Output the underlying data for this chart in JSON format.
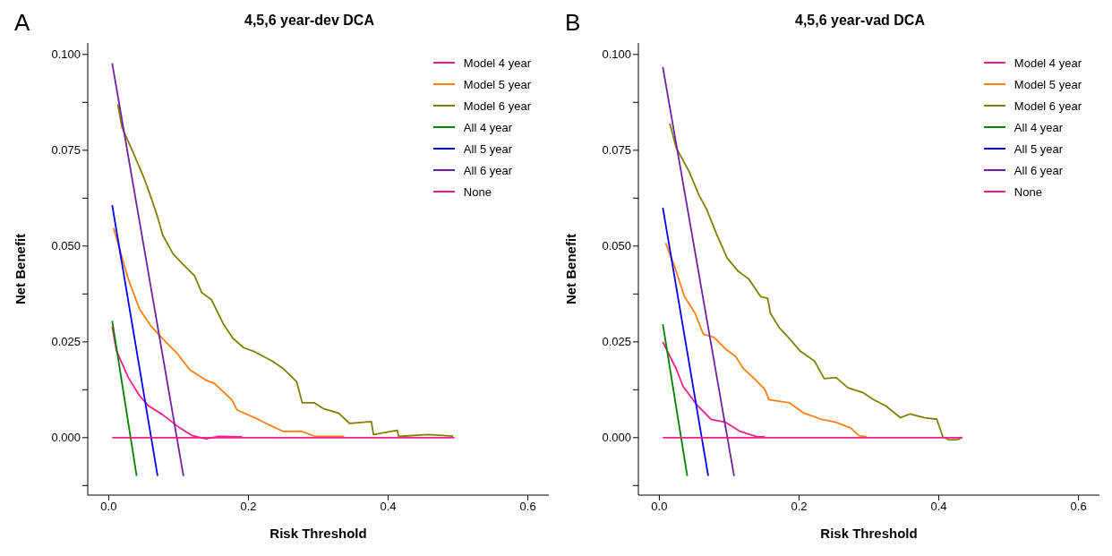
{
  "chart_data": [
    {
      "type": "line",
      "title": "4,5,6 year-dev DCA",
      "xlabel": "Risk Threshold",
      "ylabel": "Net Benefit",
      "annotations": [
        "A"
      ],
      "legend": "top right",
      "xlim": [
        -0.03,
        0.63
      ],
      "ylim": [
        -0.015,
        0.103
      ],
      "xticks": [
        {
          "value": 0,
          "label": "0.0"
        },
        0.2,
        0.4,
        0.6
      ],
      "yticks": [
        {
          "value": -0.0125,
          "label": null
        },
        {
          "value": 0,
          "label": "0.000"
        },
        {
          "value": 0.0125,
          "label": null
        },
        {
          "value": 0.025,
          "label": "0.025"
        },
        {
          "value": 0.0375,
          "label": null
        },
        {
          "value": 0.05,
          "label": "0.050"
        },
        {
          "value": 0.0625,
          "label": null
        },
        {
          "value": 0.075,
          "label": "0.075"
        },
        {
          "value": 0.0875,
          "label": null
        },
        {
          "value": 0.1,
          "label": "0.100"
        }
      ],
      "series": [
        {
          "name": "Model 4 year",
          "color": "#ff1a8c",
          "x": [
            0.005,
            0.011,
            0.028,
            0.044,
            0.057,
            0.077,
            0.102,
            0.12,
            0.139,
            0.156,
            0.191
          ],
          "values": [
            0.029,
            0.0227,
            0.0157,
            0.011,
            0.0083,
            0.006,
            0.0025,
            0.0005,
            -0.0003,
            0.0003,
            0.0002
          ]
        },
        {
          "name": "Model 5 year",
          "color": "#ff7f0e",
          "x": [
            0.007,
            0.028,
            0.044,
            0.061,
            0.081,
            0.098,
            0.116,
            0.139,
            0.151,
            0.176,
            0.184,
            0.209,
            0.23,
            0.25,
            0.275,
            0.296,
            0.337
          ],
          "values": [
            0.0547,
            0.0414,
            0.0336,
            0.029,
            0.0251,
            0.022,
            0.0177,
            0.015,
            0.0142,
            0.0099,
            0.0072,
            0.0052,
            0.0033,
            0.0016,
            0.0017,
            0.0003,
            0.0003
          ]
        },
        {
          "name": "Model 6 year",
          "color": "#808000",
          "x": [
            0.013,
            0.019,
            0.036,
            0.05,
            0.061,
            0.071,
            0.077,
            0.092,
            0.106,
            0.123,
            0.133,
            0.147,
            0.164,
            0.178,
            0.193,
            0.209,
            0.234,
            0.25,
            0.269,
            0.277,
            0.294,
            0.308,
            0.329,
            0.345,
            0.376,
            0.379,
            0.413,
            0.415,
            0.457,
            0.493
          ],
          "values": [
            0.087,
            0.081,
            0.074,
            0.068,
            0.0625,
            0.057,
            0.053,
            0.048,
            0.0453,
            0.0422,
            0.0379,
            0.036,
            0.0297,
            0.0259,
            0.0235,
            0.0224,
            0.02,
            0.018,
            0.0146,
            0.0091,
            0.0091,
            0.0075,
            0.0064,
            0.0037,
            0.0042,
            0.0008,
            0.0019,
            0.0003,
            0.0008,
            0.0004
          ]
        },
        {
          "name": "All 4 year",
          "color": "#008000",
          "x": [
            0.005,
            0.04
          ],
          "values": [
            0.0305,
            -0.01
          ]
        },
        {
          "name": "All 5 year",
          "color": "#0000ff",
          "x": [
            0.005,
            0.07
          ],
          "values": [
            0.0607,
            -0.01
          ]
        },
        {
          "name": "All 6 year",
          "color": "#7020a0",
          "x": [
            0.005,
            0.107
          ],
          "values": [
            0.0977,
            -0.01
          ]
        },
        {
          "name": "None",
          "color": "#ff1a8c",
          "x": [
            0.005,
            0.495
          ],
          "values": [
            0,
            0
          ]
        }
      ]
    },
    {
      "type": "line",
      "title": "4,5,6 year-vad DCA",
      "xlabel": "Risk Threshold",
      "ylabel": "Net Benefit",
      "annotations": [
        "B"
      ],
      "legend": "top right",
      "xlim": [
        -0.03,
        0.63
      ],
      "ylim": [
        -0.015,
        0.103
      ],
      "xticks": [
        {
          "value": 0,
          "label": "0.0"
        },
        0.2,
        0.4,
        0.6
      ],
      "yticks": [
        {
          "value": -0.0125,
          "label": null
        },
        {
          "value": 0,
          "label": "0.000"
        },
        {
          "value": 0.0125,
          "label": null
        },
        {
          "value": 0.025,
          "label": "0.025"
        },
        {
          "value": 0.0375,
          "label": null
        },
        {
          "value": 0.05,
          "label": "0.050"
        },
        {
          "value": 0.0625,
          "label": null
        },
        {
          "value": 0.075,
          "label": "0.075"
        },
        {
          "value": 0.0875,
          "label": null
        },
        {
          "value": 0.1,
          "label": "0.100"
        }
      ],
      "series": [
        {
          "name": "Model 4 year",
          "color": "#ff1a8c",
          "x": [
            0.005,
            0.024,
            0.034,
            0.053,
            0.074,
            0.095,
            0.115,
            0.128,
            0.14,
            0.151
          ],
          "values": [
            0.025,
            0.018,
            0.0134,
            0.0087,
            0.0048,
            0.004,
            0.0017,
            0.0009,
            0.0002,
            0.0002
          ]
        },
        {
          "name": "Model 5 year",
          "color": "#ff7f0e",
          "x": [
            0.009,
            0.022,
            0.036,
            0.051,
            0.063,
            0.078,
            0.095,
            0.109,
            0.12,
            0.136,
            0.151,
            0.157,
            0.186,
            0.207,
            0.232,
            0.253,
            0.274,
            0.286,
            0.297
          ],
          "values": [
            0.0508,
            0.0446,
            0.0368,
            0.0325,
            0.027,
            0.0262,
            0.0231,
            0.0212,
            0.0181,
            0.0154,
            0.0126,
            0.0099,
            0.0091,
            0.0064,
            0.0048,
            0.004,
            0.0025,
            0.0005,
            0.0002
          ]
        },
        {
          "name": "Model 6 year",
          "color": "#808000",
          "x": [
            0.015,
            0.024,
            0.0425,
            0.057,
            0.0675,
            0.082,
            0.097,
            0.113,
            0.128,
            0.145,
            0.155,
            0.159,
            0.172,
            0.186,
            0.201,
            0.222,
            0.236,
            0.253,
            0.27,
            0.291,
            0.307,
            0.324,
            0.345,
            0.359,
            0.38,
            0.397,
            0.406,
            0.415,
            0.428,
            0.433
          ],
          "values": [
            0.082,
            0.0757,
            0.0695,
            0.0632,
            0.0597,
            0.0531,
            0.0469,
            0.0434,
            0.0414,
            0.0368,
            0.0364,
            0.0325,
            0.0286,
            0.0259,
            0.0227,
            0.02,
            0.0154,
            0.0157,
            0.013,
            0.0118,
            0.0099,
            0.0083,
            0.0052,
            0.0062,
            0.0052,
            0.0048,
            0.0002,
            -0.0006,
            -0.0005,
            0.0002
          ]
        },
        {
          "name": "All 4 year",
          "color": "#008000",
          "x": [
            0.005,
            0.04
          ],
          "values": [
            0.0296,
            -0.01
          ]
        },
        {
          "name": "All 5 year",
          "color": "#0000ff",
          "x": [
            0.005,
            0.07
          ],
          "values": [
            0.06,
            -0.01
          ]
        },
        {
          "name": "All 6 year",
          "color": "#7020a0",
          "x": [
            0.005,
            0.107
          ],
          "values": [
            0.0967,
            -0.01
          ]
        },
        {
          "name": "None",
          "color": "#ff1a8c",
          "x": [
            0.005,
            0.434
          ],
          "values": [
            0,
            0
          ]
        }
      ]
    }
  ]
}
